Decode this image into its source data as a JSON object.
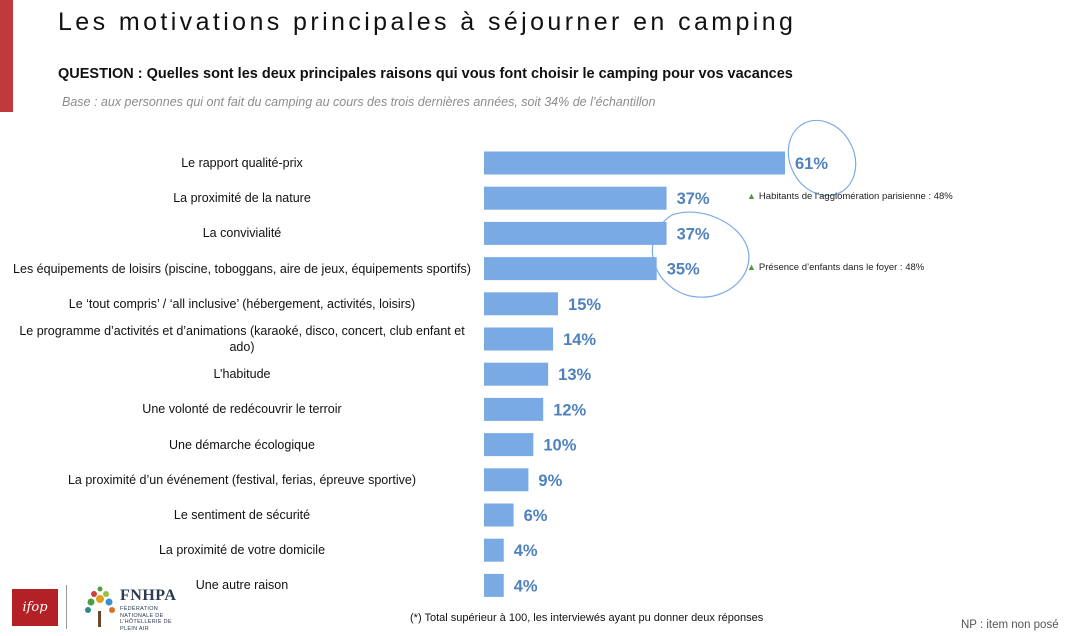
{
  "title": "Les motivations principales à séjourner en camping",
  "question": "QUESTION : Quelles sont les deux principales raisons qui vous font choisir le camping pour vos vacances",
  "base": "Base : aux personnes qui ont fait du camping au cours des trois dernières années, soit 34% de l’échantillon",
  "annotations": {
    "parisienne": "Habitants de l’agglomération parisienne : 48%",
    "enfants": "Présence d’enfants dans le foyer : 48%"
  },
  "footnote": "(*) Total supérieur à 100, les interviewés ayant pu donner deux réponses",
  "np_note": "NP : item non posé",
  "logos": {
    "ifop": "ifop",
    "fnhpa": "FNHPA",
    "fnhpa_sub": "FÉDÉRATION NATIONALE DE L’HÔTELLERIE DE PLEIN AIR"
  },
  "colors": {
    "bar": "#7aaae4",
    "value_label": "#4f82bd",
    "accent": "#c0393b",
    "highlight_ellipse": "#7aaae4",
    "annotation_triangle": "#4a9a3a"
  },
  "chart_data": {
    "type": "bar",
    "orientation": "horizontal",
    "title": "",
    "xlabel": "",
    "ylabel": "",
    "xlim": [
      0,
      61
    ],
    "grid": false,
    "legend": "none",
    "value_suffix": "%",
    "highlighted_categories": [
      0,
      1,
      2,
      3
    ],
    "categories": [
      "Le rapport qualité-prix",
      "La proximité de la nature",
      "La convivialité",
      "Les équipements de loisirs (piscine, toboggans, aire de jeux, équipements sportifs)",
      "Le ‘tout compris’ / ‘all inclusive’ (hébergement, activités, loisirs)",
      "Le programme d’activités et d’animations (karaoké, disco, concert, club enfant et ado)",
      "L’habitude",
      "Une volonté de redécouvrir le terroir",
      "Une démarche écologique",
      "La proximité d’un événement (festival, ferias, épreuve sportive)",
      "Le sentiment de sécurité",
      "La proximité de votre domicile",
      "Une autre raison"
    ],
    "values": [
      61,
      37,
      37,
      35,
      15,
      14,
      13,
      12,
      10,
      9,
      6,
      4,
      4
    ],
    "value_labels": [
      "61%",
      "37%",
      "37%",
      "35%",
      "15%",
      "14%",
      "13%",
      "12%",
      "10%",
      "9%",
      "6%",
      "4%",
      "4%"
    ]
  }
}
